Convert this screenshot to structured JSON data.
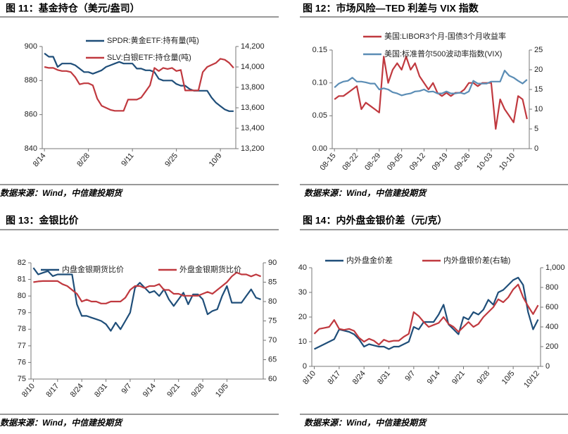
{
  "chart_data": [
    {
      "type": "line",
      "title": "图 11：基金持仓（美元/盎司）",
      "source": "数据来源：Wind，中信建投期货",
      "categories": [
        "8/14",
        null,
        null,
        null,
        null,
        null,
        null,
        null,
        null,
        null,
        "8/28",
        null,
        null,
        null,
        null,
        null,
        null,
        null,
        null,
        null,
        "9/11",
        null,
        null,
        null,
        null,
        null,
        null,
        null,
        null,
        null,
        "9/25",
        null,
        null,
        null,
        null,
        null,
        null,
        null,
        null,
        null,
        "10/9",
        null,
        null,
        null
      ],
      "ylim": [
        840,
        900
      ],
      "yticks": [
        840,
        860,
        880,
        900
      ],
      "y2lim": [
        13200,
        14200
      ],
      "y2ticks": [
        {
          "value": 13200,
          "label": "13,200"
        },
        {
          "value": 13400,
          "label": "13,400"
        },
        {
          "value": 13600,
          "label": "13,600"
        },
        {
          "value": 13800,
          "label": "13,800"
        },
        {
          "value": 14000,
          "label": "14,000"
        },
        {
          "value": 14200,
          "label": "14,200"
        }
      ],
      "series": [
        {
          "name": "SPDR:黄金ETF:持有量(吨)",
          "color": "#1f4e79",
          "values": [
            896,
            894,
            894,
            888,
            890,
            890,
            890,
            889,
            887,
            885,
            885,
            884,
            885,
            886,
            888,
            889,
            890,
            891,
            890,
            890,
            890,
            887,
            887,
            886,
            886,
            885,
            881,
            880,
            880,
            880,
            878,
            877,
            877,
            875,
            874,
            874,
            874,
            874,
            870,
            867,
            865,
            863,
            862,
            862
          ]
        },
        {
          "name": "SLV:白银ETF:持仓量(吨)",
          "color": "#c0393f",
          "axis": "y2",
          "values": [
            14000,
            13990,
            13990,
            13970,
            13960,
            13960,
            13950,
            13900,
            13830,
            13840,
            13840,
            13820,
            13690,
            13620,
            13600,
            13580,
            13570,
            13570,
            13570,
            13680,
            13680,
            13680,
            13700,
            13760,
            13820,
            13990,
            13960,
            13990,
            13980,
            13990,
            13960,
            13970,
            13770,
            13770,
            13770,
            13770,
            13950,
            14000,
            14020,
            14040,
            14080,
            14070,
            14040,
            13990
          ]
        }
      ]
    },
    {
      "type": "line",
      "title": "图 12：市场风险—TED 利差与 VIX 指数",
      "source": "数据来源：Wind，中信建投期货",
      "categories": [
        "08-15",
        null,
        null,
        null,
        null,
        "08-22",
        null,
        null,
        null,
        null,
        "08-29",
        null,
        null,
        null,
        null,
        "09-05",
        null,
        null,
        null,
        null,
        "09-12",
        null,
        null,
        null,
        null,
        "09-19",
        null,
        null,
        null,
        null,
        "09-26",
        null,
        null,
        null,
        null,
        "10-03",
        null,
        null,
        null,
        null,
        "10-10",
        null,
        null,
        null
      ],
      "ylim": [
        0,
        0.15
      ],
      "yticks": [
        {
          "value": 0,
          "label": "0.00"
        },
        0.05,
        {
          "value": 0.1,
          "label": "0.10"
        },
        {
          "value": 0.15,
          "label": "0.15"
        }
      ],
      "y2lim": [
        0,
        25
      ],
      "y2ticks": [
        0,
        5,
        10,
        15,
        20,
        25
      ],
      "series": [
        {
          "name": "美国:LIBOR3个月-国债3个月收益率",
          "color": "#c0393f",
          "values": [
            0.075,
            0.08,
            0.08,
            0.085,
            0.09,
            0.095,
            0.06,
            0.07,
            0.065,
            0.06,
            0.055,
            0.14,
            0.1,
            0.12,
            0.13,
            0.12,
            0.14,
            0.12,
            0.13,
            0.11,
            0.1,
            0.09,
            0.1,
            0.085,
            0.08,
            0.085,
            0.08,
            0.085,
            0.085,
            0.09,
            0.1,
            0.1,
            0.095,
            0.1,
            0.1,
            0.1,
            0.03,
            0.075,
            0.06,
            0.05,
            0.04,
            0.08,
            0.075,
            0.045
          ]
        },
        {
          "name": "美国:标准普尔500波动率指数(VIX)",
          "color": "#5b8db5",
          "axis": "y2",
          "values": [
            15.5,
            16.5,
            17,
            17.2,
            18,
            17,
            17,
            16.8,
            16.5,
            16.5,
            15,
            15.3,
            15,
            14.3,
            14,
            13.5,
            13.8,
            14,
            14.5,
            14.6,
            15,
            14.4,
            14.5,
            14,
            14,
            14.5,
            14,
            14,
            14.2,
            13.9,
            14.5,
            17.2,
            16.5,
            16.5,
            16.5,
            17,
            17,
            17,
            19.8,
            18.5,
            18,
            17.2,
            16.5,
            17.5
          ]
        }
      ]
    },
    {
      "type": "line",
      "title": "图 13：金银比价",
      "source": "数据来源：Wind，中信建投期货",
      "categories": [
        "8/10",
        null,
        null,
        null,
        null,
        "8/17",
        null,
        null,
        null,
        null,
        "8/24",
        null,
        null,
        null,
        null,
        "8/31",
        null,
        null,
        null,
        null,
        "9/7",
        null,
        null,
        null,
        null,
        "9/14",
        null,
        null,
        null,
        null,
        "9/21",
        null,
        null,
        null,
        null,
        "9/28",
        null,
        null,
        null,
        null,
        "10/5",
        null,
        null,
        null,
        null,
        null,
        null,
        null
      ],
      "ylim": [
        75,
        82
      ],
      "yticks": [
        75,
        76,
        77,
        78,
        79,
        80,
        81,
        82
      ],
      "y2lim": [
        60,
        90
      ],
      "y2ticks": [
        60,
        65,
        70,
        75,
        80,
        85,
        90
      ],
      "series": [
        {
          "name": "内盘金银期货比价",
          "color": "#1f4e79",
          "values": [
            81.7,
            81.3,
            81.4,
            81.5,
            81.2,
            81.3,
            81.3,
            81.3,
            81.3,
            79.5,
            78.8,
            78.8,
            78.7,
            78.6,
            78.5,
            78.3,
            77.9,
            78.4,
            78,
            78.5,
            79,
            80.5,
            80.8,
            80.5,
            80.2,
            80.3,
            80,
            80.4,
            79.8,
            79.4,
            79.8,
            80.2,
            79.5,
            80.1,
            80.1,
            79.8,
            78.9,
            79.1,
            79.2,
            80,
            80.6,
            79.6,
            79.6,
            79.6,
            80,
            80.4,
            79.9,
            79.8
          ]
        },
        {
          "name": "外盘金银期货比价",
          "color": "#c0393f",
          "axis": "y2",
          "values": [
            85,
            85.2,
            85.3,
            85.3,
            85.3,
            85.3,
            84.5,
            84,
            83,
            82,
            80,
            80.5,
            80,
            80,
            79.5,
            79.5,
            80,
            80,
            80,
            81,
            83,
            84,
            84,
            83.5,
            84,
            84,
            84.5,
            83,
            83,
            82,
            82,
            81.5,
            81.5,
            81.5,
            81.5,
            82,
            82.5,
            82,
            83,
            84,
            85,
            86.5,
            87.5,
            87,
            87,
            86.5,
            87,
            86.5
          ]
        }
      ]
    },
    {
      "type": "line",
      "title": "图 14：内外盘金银价差（元/克）",
      "source": "数据来源：Wind，中信建投期货",
      "categories": [
        "8/10",
        null,
        null,
        null,
        null,
        "8/17",
        null,
        null,
        null,
        null,
        "8/24",
        null,
        null,
        null,
        null,
        "8/31",
        null,
        null,
        null,
        null,
        "9/7",
        null,
        null,
        null,
        null,
        "9/14",
        null,
        null,
        null,
        null,
        "9/21",
        null,
        null,
        null,
        null,
        "9/28",
        null,
        null,
        null,
        null,
        "10/5",
        null,
        null,
        null,
        null,
        "10/12"
      ],
      "ylim": [
        0,
        40
      ],
      "yticks": [
        0,
        10,
        20,
        30,
        40
      ],
      "y2lim": [
        0,
        1000
      ],
      "y2ticks": [
        0,
        200,
        400,
        600,
        800,
        {
          "value": 1000,
          "label": "1,000"
        }
      ],
      "series": [
        {
          "name": "内外盘金价差",
          "color": "#1f4e79",
          "values": [
            7,
            8,
            9,
            10,
            11,
            15,
            14.5,
            14,
            13,
            11,
            8,
            9,
            8.5,
            8,
            8,
            7,
            8,
            8,
            9,
            10,
            16,
            15,
            18,
            18,
            18,
            21,
            25,
            17,
            15,
            13,
            20,
            19,
            22,
            21,
            23,
            27,
            25,
            30,
            31,
            33,
            35,
            36,
            33,
            22,
            15,
            19
          ]
        },
        {
          "name": "内外盘银价差(右轴)",
          "color": "#c0393f",
          "axis": "y2",
          "values": [
            330,
            380,
            390,
            400,
            470,
            380,
            370,
            380,
            360,
            290,
            250,
            280,
            260,
            220,
            270,
            250,
            260,
            260,
            300,
            330,
            550,
            510,
            450,
            400,
            420,
            440,
            500,
            430,
            400,
            350,
            400,
            450,
            400,
            430,
            500,
            550,
            600,
            680,
            650,
            700,
            780,
            830,
            700,
            610,
            530,
            620
          ]
        }
      ]
    }
  ]
}
